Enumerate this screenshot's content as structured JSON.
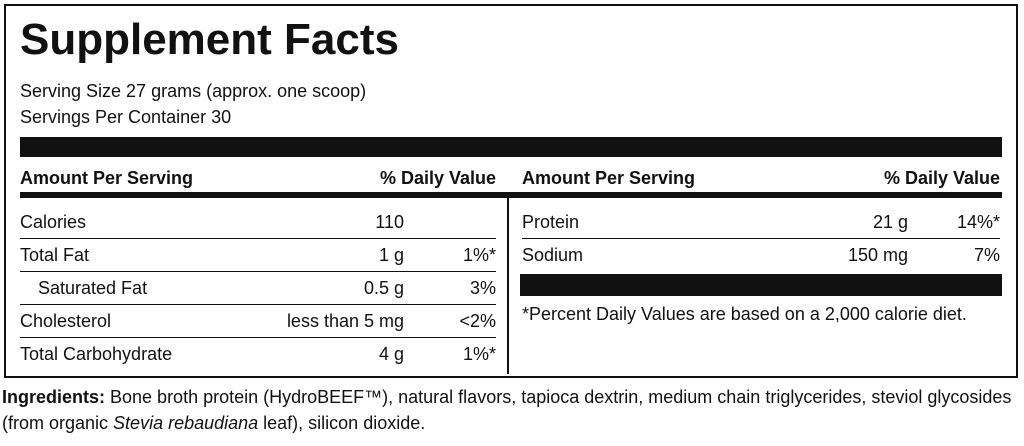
{
  "title": "Supplement Facts",
  "serving_size": "Serving Size 27 grams (approx. one scoop)",
  "servings_per_container": "Servings Per Container 30",
  "left_table": {
    "header": [
      "Amount Per Serving",
      "% Daily Value"
    ],
    "rows": [
      {
        "name": "Calories",
        "amount": "110"
      },
      {
        "name": "Total Fat",
        "amount": "1 g",
        "dv": "1%*"
      },
      {
        "name": "Saturated Fat",
        "amount": "0.5 g",
        "dv": "3%",
        "indent": true
      },
      {
        "name": "Cholesterol",
        "amount": "less than 5 mg",
        "dv": "<2%"
      },
      {
        "name": "Total Carbohydrate",
        "amount": "4 g",
        "dv": "1%*"
      }
    ]
  },
  "right_table": {
    "header": [
      "Amount Per Serving",
      "% Daily Value"
    ],
    "rows": [
      {
        "name": "Protein",
        "amount": "21 g",
        "dv": "14%*"
      },
      {
        "name": "Sodium",
        "amount": "150 mg",
        "dv": "7%"
      }
    ]
  },
  "footnote": "*Percent Daily Values are based on a 2,000 calorie diet.",
  "ingredients": {
    "label": "Ingredients:",
    "text": " Bone broth protein (HydroBEEF™), natural flavors, tapioca dextrin, medium chain triglycerides, steviol glycosides (from organic ",
    "italic": "Stevia rebaudiana",
    "text_end": " leaf), silicon dioxide."
  }
}
